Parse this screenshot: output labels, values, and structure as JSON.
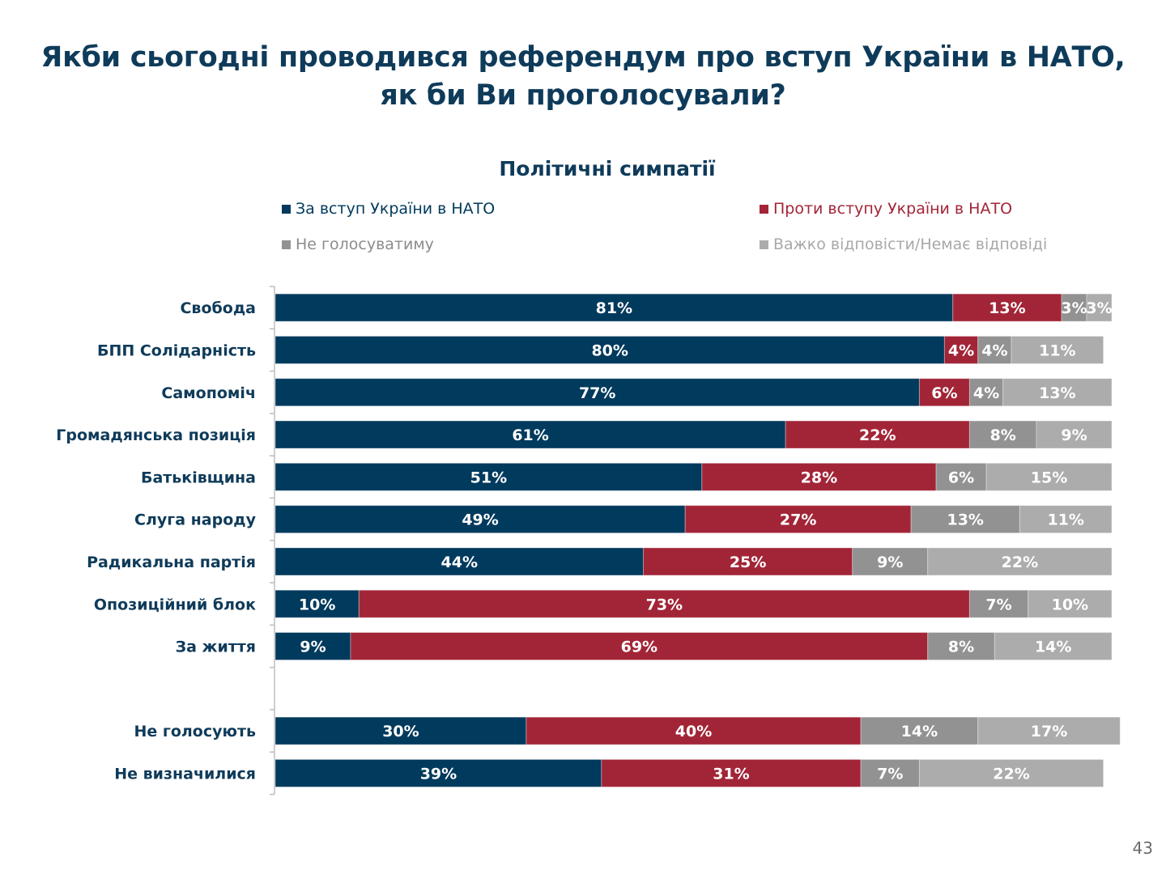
{
  "title_lines": [
    "Якби сьогодні проводився референдум про вступ України в НАТО,",
    "як би Ви проголосували?"
  ],
  "page_number": "43",
  "chart_data": {
    "type": "bar",
    "orientation": "horizontal",
    "stacked": "100%",
    "title": "Політичні симпатії",
    "xlabel": "",
    "ylabel": "",
    "xlim": [
      0,
      100
    ],
    "grid": false,
    "legend_position": "top",
    "categories": [
      "Свобода",
      "БПП Солідарність",
      "Самопоміч",
      "Громадянська позиція",
      "Батьківщина",
      "Слуга народу",
      "Радикальна партія",
      "Опозиційний блок",
      "За життя",
      "",
      "Не голосують",
      "Не визначилися"
    ],
    "series": [
      {
        "name": "За вступ України в НАТО",
        "color": "#003A5D",
        "values": [
          81,
          80,
          77,
          61,
          51,
          49,
          44,
          10,
          9,
          null,
          30,
          39
        ]
      },
      {
        "name": "Проти вступу України в НАТО",
        "color": "#A22537",
        "values": [
          13,
          4,
          6,
          22,
          28,
          27,
          25,
          73,
          69,
          null,
          40,
          31
        ]
      },
      {
        "name": "Не голосуватиму",
        "color": "#929292",
        "values": [
          3,
          4,
          4,
          8,
          6,
          13,
          9,
          7,
          8,
          null,
          14,
          7
        ]
      },
      {
        "name": "Важко відповісти/Немає відповіді",
        "color": "#ACACAC",
        "values": [
          3,
          11,
          13,
          9,
          15,
          11,
          22,
          10,
          14,
          null,
          17,
          22
        ]
      }
    ],
    "value_label_suffix": "%"
  }
}
